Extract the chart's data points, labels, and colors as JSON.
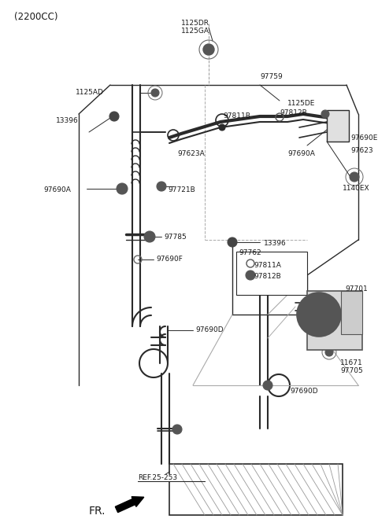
{
  "bg": "#ffffff",
  "lc": "#2a2a2a",
  "tc": "#1a1a1a",
  "fig_w": 4.8,
  "fig_h": 6.74,
  "dpi": 100,
  "xlim": [
    0,
    480
  ],
  "ylim": [
    0,
    674
  ]
}
